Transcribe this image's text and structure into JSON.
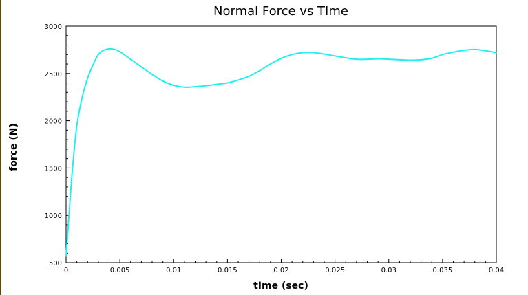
{
  "chart_data": {
    "type": "line",
    "title": "Normal Force vs TIme",
    "xlabel": "tIme (sec)",
    "ylabel": "force (N)",
    "xlim": [
      0,
      0.04
    ],
    "ylim": [
      500,
      3000
    ],
    "xticks": [
      0,
      0.005,
      0.01,
      0.015,
      0.02,
      0.025,
      0.03,
      0.035,
      0.04
    ],
    "xtick_labels": [
      "0",
      "0.005",
      "0.01",
      "0.015",
      "0.02",
      "0.025",
      "0.03",
      "0.035",
      "0.04"
    ],
    "yticks": [
      500,
      1000,
      1500,
      2000,
      2500,
      3000
    ],
    "ytick_labels": [
      "500",
      "1000",
      "1500",
      "2000",
      "2500",
      "3000"
    ],
    "grid": false,
    "series": [
      {
        "color": "#22eeee",
        "x": [
          0,
          0.0003,
          0.0006,
          0.001,
          0.0015,
          0.002,
          0.0025,
          0.003,
          0.0035,
          0.004,
          0.0045,
          0.005,
          0.0055,
          0.006,
          0.007,
          0.008,
          0.009,
          0.01,
          0.011,
          0.012,
          0.013,
          0.014,
          0.015,
          0.016,
          0.017,
          0.018,
          0.019,
          0.02,
          0.021,
          0.022,
          0.023,
          0.024,
          0.025,
          0.026,
          0.027,
          0.028,
          0.029,
          0.03,
          0.031,
          0.032,
          0.033,
          0.034,
          0.035,
          0.036,
          0.037,
          0.038,
          0.039,
          0.04
        ],
        "y": [
          570,
          1050,
          1500,
          1950,
          2250,
          2450,
          2590,
          2700,
          2745,
          2760,
          2755,
          2730,
          2690,
          2650,
          2570,
          2490,
          2420,
          2375,
          2355,
          2360,
          2370,
          2385,
          2400,
          2430,
          2470,
          2530,
          2600,
          2660,
          2700,
          2720,
          2720,
          2705,
          2685,
          2665,
          2650,
          2650,
          2655,
          2650,
          2645,
          2640,
          2645,
          2660,
          2700,
          2725,
          2745,
          2755,
          2740,
          2720
        ]
      }
    ]
  }
}
